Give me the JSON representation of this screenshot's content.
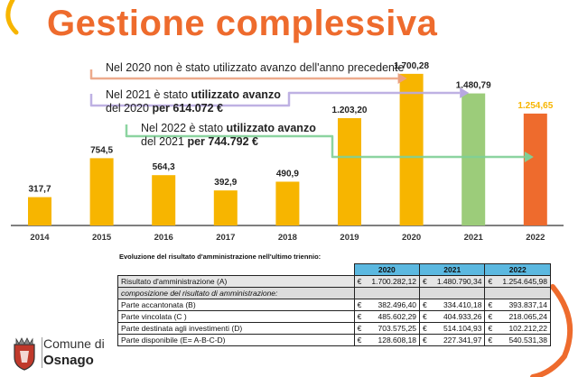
{
  "title": "Gestione complessiva",
  "notes": [
    {
      "text_plain": "Nel 2020 non è stato utilizzato avanzo dell'anno precedente"
    },
    {
      "line1_plain": "Nel 2021 è stato ",
      "line1_bold": "utilizzato avanzo",
      "line2_plain": "del 2020 ",
      "line2_bold": "per 614.072 €"
    },
    {
      "line1_plain": "Nel 2022 è stato ",
      "line1_bold": "utilizzato avanzo",
      "line2_plain": "del 2021 ",
      "line2_bold": "per 744.792 €"
    }
  ],
  "chart_data": {
    "type": "bar",
    "categories": [
      "2014",
      "2015",
      "2016",
      "2017",
      "2018",
      "2019",
      "2020",
      "2021",
      "2022"
    ],
    "values": [
      317.7,
      754.5,
      564.3,
      392.9,
      490.9,
      1203.2,
      1700.28,
      1480.79,
      1254.65
    ],
    "value_labels": [
      "317,7",
      "754,5",
      "564,3",
      "392,9",
      "490,9",
      "1.203,20",
      "1.700,28",
      "1.480,79",
      "1.254,65"
    ],
    "bar_colors": [
      "#f7b500",
      "#f7b500",
      "#f7b500",
      "#f7b500",
      "#f7b500",
      "#f7b500",
      "#f7b500",
      "#9ccc7a",
      "#ee6b2d"
    ],
    "label_colors": [
      "#222222",
      "#222222",
      "#222222",
      "#222222",
      "#222222",
      "#222222",
      "#222222",
      "#222222",
      "#f7b500"
    ],
    "arrow_colors": [
      "#eba17f",
      "#b7a8e0",
      "#7fcf96"
    ],
    "ylim": [
      0,
      1800
    ],
    "grid": false
  },
  "table": {
    "caption": "Evoluzione del risultato d'amministrazione nell'ultimo triennio:",
    "years": [
      "2020",
      "2021",
      "2022"
    ],
    "currency": "€",
    "rows": [
      {
        "label": "Risultato d'amministrazione (A)",
        "values": [
          "1.700.282,12",
          "1.480.790,34",
          "1.254.645,98"
        ],
        "style": "highlight"
      },
      {
        "label": "composizione del risultato di amministrazione:",
        "values": [],
        "style": "sub"
      },
      {
        "label": "Parte accantonata (B)",
        "values": [
          "382.496,40",
          "334.410,18",
          "393.837,14"
        ],
        "style": ""
      },
      {
        "label": "Parte vincolata (C )",
        "values": [
          "485.602,29",
          "404.933,26",
          "218.065,24"
        ],
        "style": ""
      },
      {
        "label": "Parte destinata agli investimenti (D)",
        "values": [
          "703.575,25",
          "514.104,93",
          "102.212,22"
        ],
        "style": ""
      },
      {
        "label": "Parte disponibile (E= A-B-C-D)",
        "values": [
          "128.608,18",
          "227.341,97",
          "540.531,38"
        ],
        "style": ""
      }
    ]
  },
  "logo": {
    "line1": "Comune di",
    "line2": "Osnago"
  },
  "colors": {
    "accent": "#ee6b2d",
    "bar": "#f7b500",
    "table_header": "#5bb8e0"
  }
}
